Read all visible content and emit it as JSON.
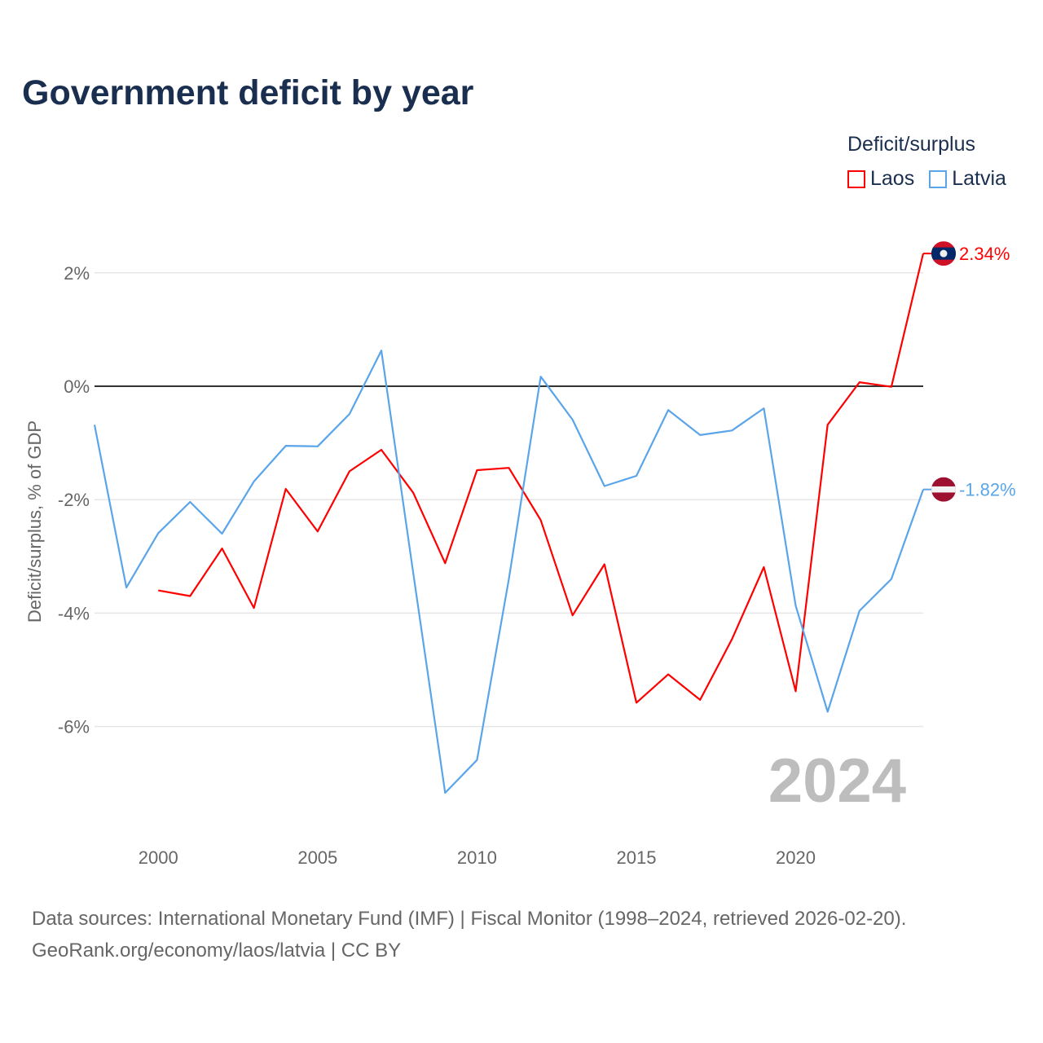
{
  "title": "Government deficit by year",
  "legend": {
    "title": "Deficit/surplus",
    "items": [
      {
        "label": "Laos",
        "color": "#ff0000"
      },
      {
        "label": "Latvia",
        "color": "#5aa5ea"
      }
    ]
  },
  "source": {
    "line1": "Data sources: International Monetary Fund (IMF) | Fiscal Monitor (1998–2024, retrieved 2026-02-20).",
    "line2": "GeoRank.org/economy/laos/latvia | CC BY"
  },
  "chart_data": {
    "type": "line",
    "title": "Government deficit by year",
    "xlabel": "",
    "ylabel": "Deficit/surplus, % of GDP",
    "year_watermark": "2024",
    "xlim": [
      1998,
      2024
    ],
    "ylim": [
      -7.6,
      3.2
    ],
    "x_ticks": [
      2000,
      2005,
      2010,
      2015,
      2020
    ],
    "y_ticks": [
      {
        "v": 2,
        "label": "2%"
      },
      {
        "v": 0,
        "label": "0%"
      },
      {
        "v": -2,
        "label": "-2%"
      },
      {
        "v": -4,
        "label": "-4%"
      },
      {
        "v": -6,
        "label": "-6%"
      }
    ],
    "series": [
      {
        "name": "Laos",
        "color": "#ff0000",
        "end_label": "2.34%",
        "flag": "laos",
        "x": [
          2000,
          2001,
          2002,
          2003,
          2004,
          2005,
          2006,
          2007,
          2008,
          2009,
          2010,
          2011,
          2012,
          2013,
          2014,
          2015,
          2016,
          2017,
          2018,
          2019,
          2020,
          2021,
          2022,
          2023,
          2024
        ],
        "values": [
          -3.6,
          -3.7,
          -2.86,
          -3.91,
          -1.81,
          -2.56,
          -1.5,
          -1.12,
          -1.88,
          -3.12,
          -1.48,
          -1.44,
          -2.36,
          -4.04,
          -3.14,
          -5.58,
          -5.08,
          -5.53,
          -4.46,
          -3.19,
          -5.38,
          -0.68,
          0.07,
          -0.01,
          2.34
        ]
      },
      {
        "name": "Latvia",
        "color": "#5aa5ea",
        "end_label": "-1.82%",
        "flag": "latvia",
        "x": [
          1998,
          1999,
          2000,
          2001,
          2002,
          2003,
          2004,
          2005,
          2006,
          2007,
          2008,
          2009,
          2010,
          2011,
          2012,
          2013,
          2014,
          2015,
          2016,
          2017,
          2018,
          2019,
          2020,
          2021,
          2022,
          2023,
          2024
        ],
        "values": [
          -0.68,
          -3.55,
          -2.59,
          -2.04,
          -2.6,
          -1.68,
          -1.05,
          -1.06,
          -0.49,
          0.63,
          -3.3,
          -7.17,
          -6.59,
          -3.4,
          0.17,
          -0.59,
          -1.76,
          -1.58,
          -0.42,
          -0.86,
          -0.78,
          -0.39,
          -3.87,
          -5.74,
          -3.96,
          -3.4,
          -1.82
        ]
      }
    ]
  }
}
